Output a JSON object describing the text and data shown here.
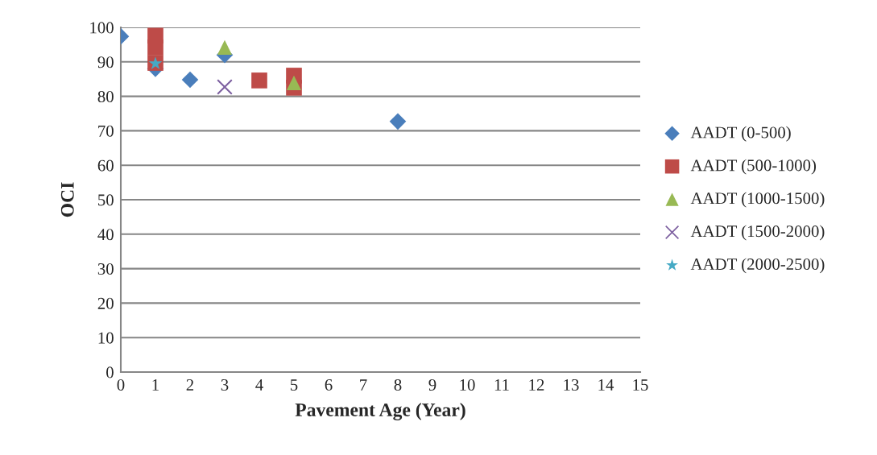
{
  "chart_data": {
    "type": "scatter",
    "xlabel": "Pavement Age (Year)",
    "ylabel": "OCI",
    "xlim": [
      0,
      15
    ],
    "xticks": [
      0,
      1,
      2,
      3,
      4,
      5,
      6,
      7,
      8,
      9,
      10,
      11,
      12,
      13,
      14,
      15
    ],
    "ylim": [
      0,
      100
    ],
    "yticks": [
      0,
      10,
      20,
      30,
      40,
      50,
      60,
      70,
      80,
      90,
      100
    ],
    "grid": "y",
    "legend": "right",
    "series": [
      {
        "name": "AADT (0-500)",
        "color": "#4a7ebb",
        "marker": "diamond",
        "x": [
          0,
          1,
          2,
          3,
          8
        ],
        "values": [
          97.4,
          88,
          84.8,
          92,
          72.7
        ]
      },
      {
        "name": "AADT (500-1000)",
        "color": "#be4b48",
        "marker": "square",
        "x": [
          1,
          1,
          1,
          4,
          5,
          5
        ],
        "values": [
          97.6,
          94.2,
          89.7,
          84.6,
          86,
          82.5
        ]
      },
      {
        "name": "AADT (1000-1500)",
        "color": "#98b954",
        "marker": "triangle",
        "x": [
          3,
          5
        ],
        "values": [
          94.2,
          83.9
        ]
      },
      {
        "name": "AADT (1500-2000)",
        "color": "#7d60a0",
        "marker": "cross",
        "x": [
          3
        ],
        "values": [
          82.7
        ]
      },
      {
        "name": "AADT (2000-2500)",
        "color": "#46aac5",
        "marker": "star",
        "x": [
          1
        ],
        "values": [
          89.5
        ]
      }
    ]
  }
}
